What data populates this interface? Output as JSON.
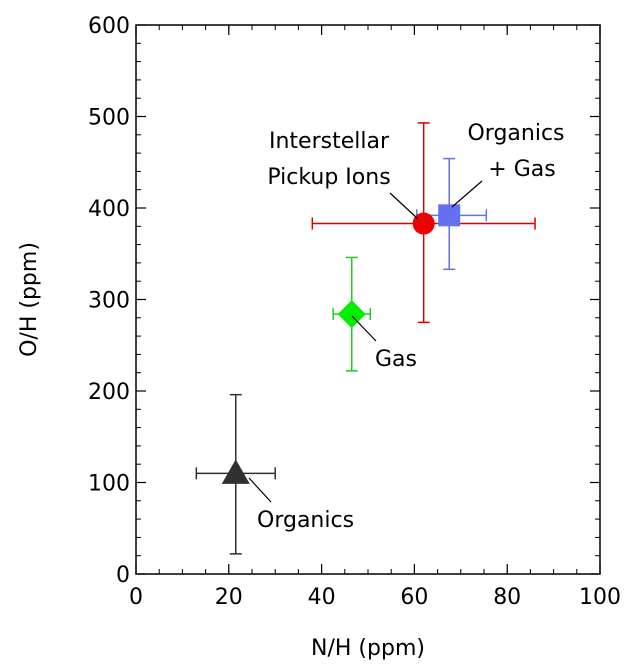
{
  "chart_data": {
    "type": "scatter",
    "xlabel": "N/H (ppm)",
    "ylabel": "O/H (ppm)",
    "xlim": [
      0,
      100
    ],
    "ylim": [
      0,
      600
    ],
    "grid": false,
    "x_ticks": [
      0,
      20,
      40,
      60,
      80,
      100
    ],
    "y_ticks": [
      0,
      100,
      200,
      300,
      400,
      500,
      600
    ],
    "x_tick_labels": [
      "0",
      "20",
      "40",
      "60",
      "80",
      "100"
    ],
    "y_tick_labels": [
      "0",
      "100",
      "200",
      "300",
      "400",
      "500",
      "600"
    ],
    "x_minor_step": 5,
    "y_minor_step": 20,
    "points": [
      {
        "id": "organics",
        "x": 21.5,
        "y": 110,
        "x_err": [
          13,
          30
        ],
        "y_err": [
          22,
          196
        ],
        "marker": "triangle",
        "color": "#303030",
        "err_color": "#303030",
        "label_lines": [
          "Organics"
        ]
      },
      {
        "id": "gas",
        "x": 46.5,
        "y": 284,
        "x_err": [
          42.5,
          50.5
        ],
        "y_err": [
          222,
          346
        ],
        "marker": "diamond",
        "color": "#00ee00",
        "err_color": "#22cc22",
        "label_lines": [
          "Gas"
        ]
      },
      {
        "id": "pickup-ions",
        "x": 62,
        "y": 383,
        "x_err": [
          38,
          86
        ],
        "y_err": [
          275,
          493
        ],
        "marker": "circle",
        "color": "#ee0000",
        "err_color": "#dd0000",
        "label_lines": [
          "Interstellar",
          "Pickup Ions"
        ]
      },
      {
        "id": "organics-gas",
        "x": 67.5,
        "y": 392,
        "x_err": [
          60.5,
          75.5
        ],
        "y_err": [
          333,
          454
        ],
        "marker": "square",
        "color": "#6670ee",
        "err_color": "#6670ee",
        "label_lines": [
          "Organics",
          "+ Gas"
        ]
      }
    ]
  }
}
